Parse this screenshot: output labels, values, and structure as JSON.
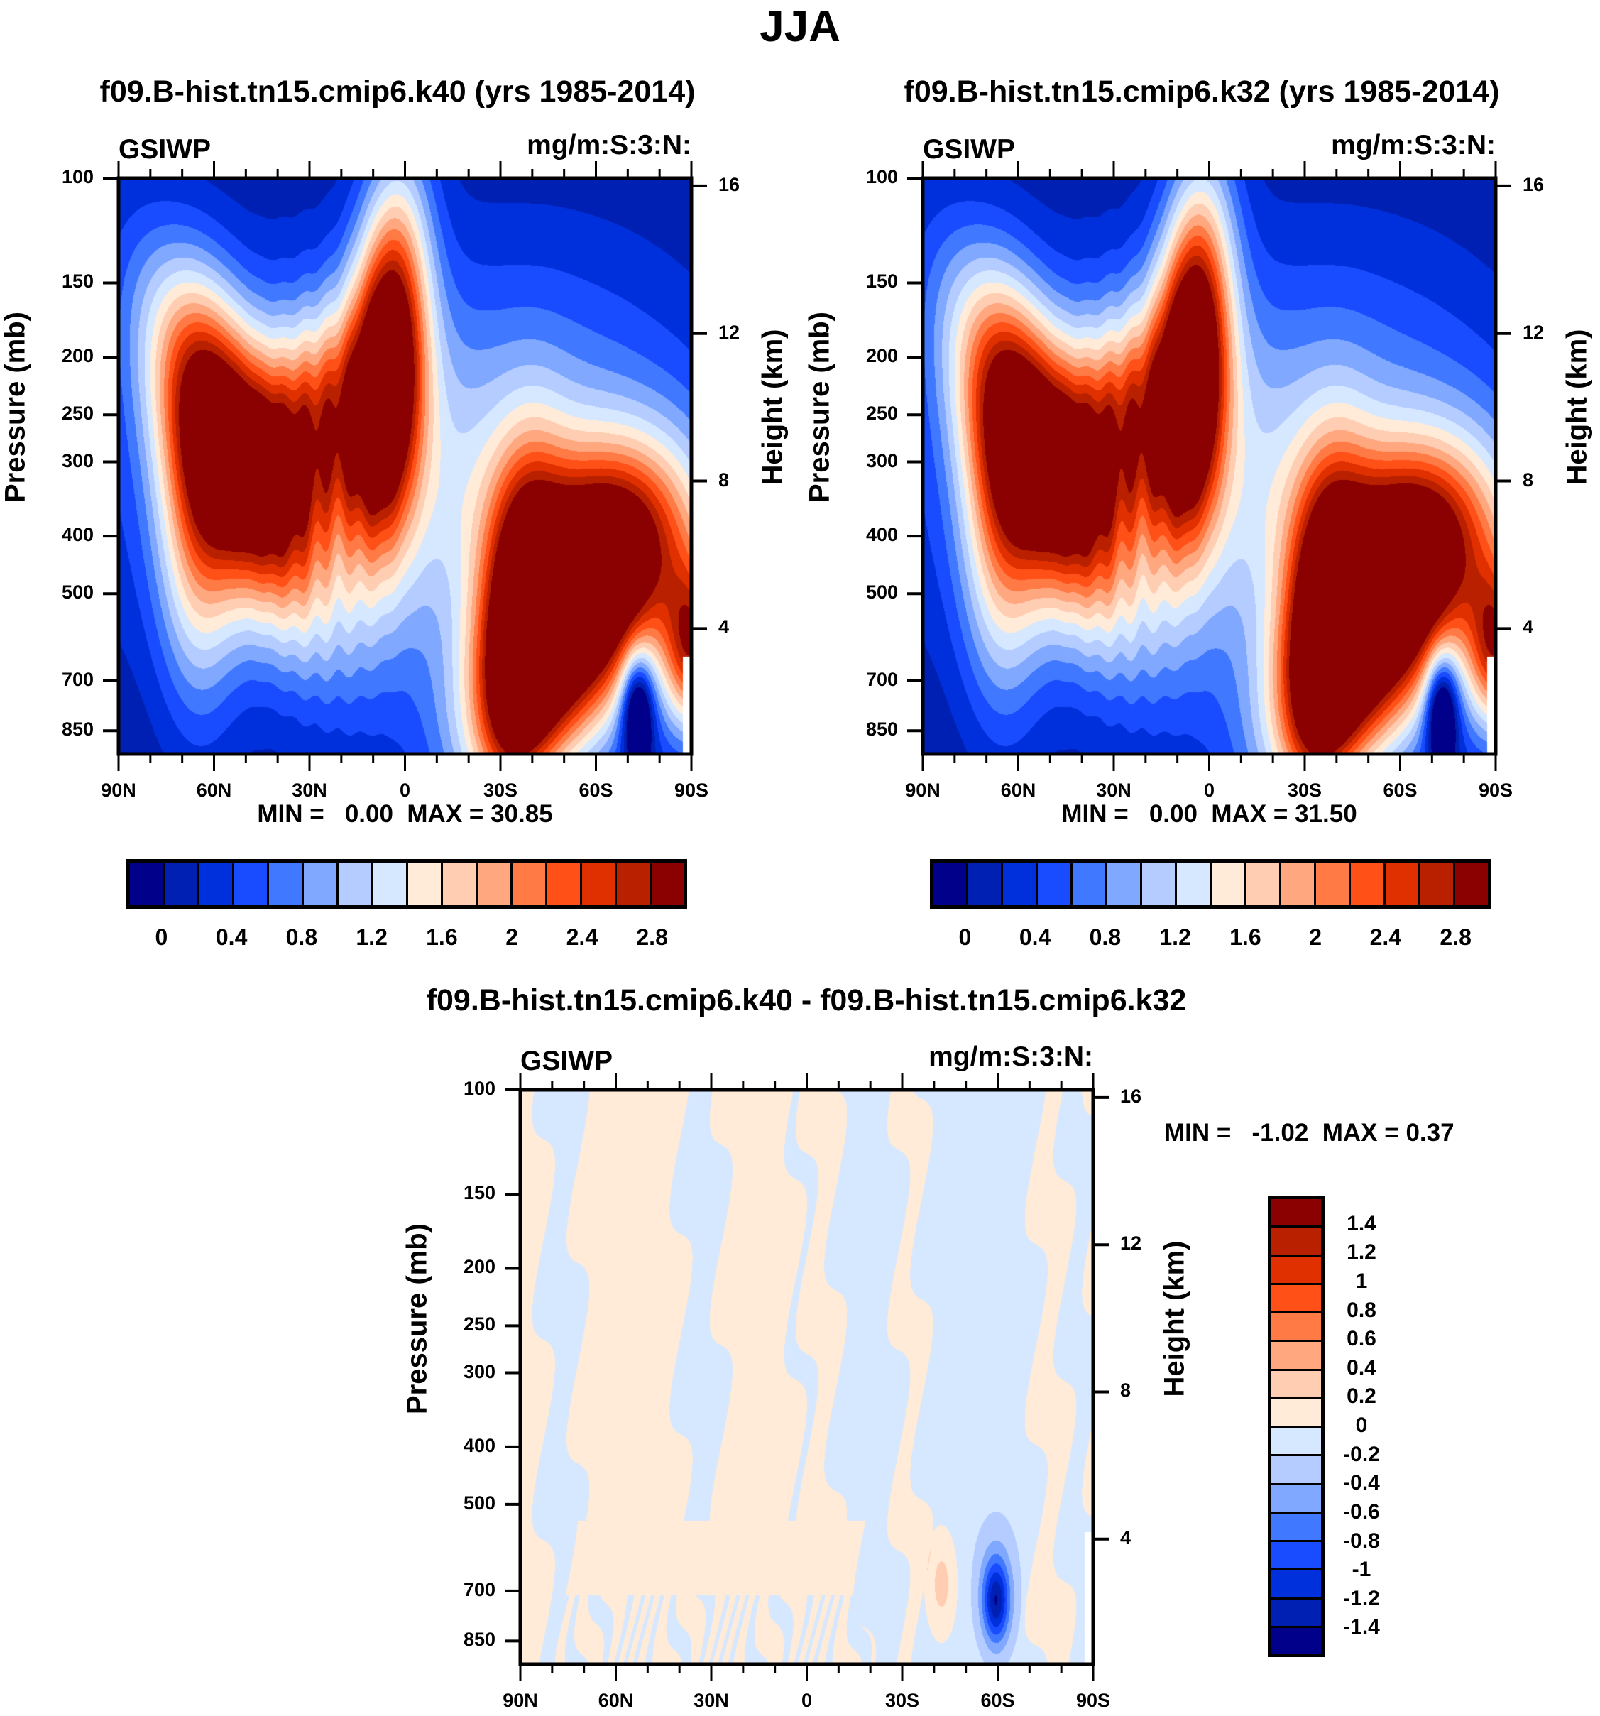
{
  "title": "JJA",
  "palette": [
    "#00008B",
    "#0020B4",
    "#0030DC",
    "#1A4CFF",
    "#4078FF",
    "#80A8FF",
    "#B4CCFF",
    "#D6E8FF",
    "#FFEBD8",
    "#FFCDB2",
    "#FFA880",
    "#FF7A45",
    "#FF5018",
    "#E03000",
    "#B82000",
    "#8B0000"
  ],
  "chart_data": [
    {
      "type": "heatmap",
      "id": "case1",
      "title": "f09.B-hist.tn15.cmip6.k40 (yrs 1985-2014)",
      "variable": "GSIWP",
      "units": "mg/m:S:3:N:",
      "xlabel": "",
      "ylabel": "Pressure (mb)",
      "ylabel_right": "Height (km)",
      "x_ticks": [
        "90N",
        "60N",
        "30N",
        "0",
        "30S",
        "60S",
        "90S"
      ],
      "x_range": [
        90,
        -90
      ],
      "y_ticks": [
        100,
        150,
        200,
        250,
        300,
        400,
        500,
        700,
        850
      ],
      "y_range_mb": [
        100,
        930
      ],
      "y_scale": "log",
      "y_right_ticks": [
        16,
        12,
        8,
        4
      ],
      "contour_levels": [
        0,
        0.2,
        0.4,
        0.6,
        0.8,
        1.0,
        1.2,
        1.4,
        1.6,
        1.8,
        2.0,
        2.2,
        2.4,
        2.6,
        2.8
      ],
      "colorbar_labels": [
        "0",
        "0.4",
        "0.8",
        "1.2",
        "1.6",
        "2",
        "2.4",
        "2.8"
      ],
      "colorbar_orientation": "horizontal",
      "min_label": "MIN =",
      "min_value": "0.00",
      "max_label": "MAX =",
      "max_value": "30.85",
      "features": [
        {
          "name": "NH midlatitude maximum",
          "lat_center": 45,
          "p_center": 420,
          "peak": ">2.8"
        },
        {
          "name": "Tropical deep maximum",
          "lat_center": 8,
          "p_center": 300,
          "peak": ">2.8"
        },
        {
          "name": "SH midlatitude maximum",
          "lat_center": -48,
          "p_center": 650,
          "peak": ">2.8"
        },
        {
          "name": "Antarctic low-level",
          "lat_center": -85,
          "p_center": 650,
          "peak": ">2.8"
        }
      ]
    },
    {
      "type": "heatmap",
      "id": "case2",
      "title": "f09.B-hist.tn15.cmip6.k32 (yrs 1985-2014)",
      "variable": "GSIWP",
      "units": "mg/m:S:3:N:",
      "xlabel": "",
      "ylabel": "Pressure (mb)",
      "ylabel_right": "Height (km)",
      "x_ticks": [
        "90N",
        "60N",
        "30N",
        "0",
        "30S",
        "60S",
        "90S"
      ],
      "x_range": [
        90,
        -90
      ],
      "y_ticks": [
        100,
        150,
        200,
        250,
        300,
        400,
        500,
        700,
        850
      ],
      "y_range_mb": [
        100,
        930
      ],
      "y_scale": "log",
      "y_right_ticks": [
        16,
        12,
        8,
        4
      ],
      "contour_levels": [
        0,
        0.2,
        0.4,
        0.6,
        0.8,
        1.0,
        1.2,
        1.4,
        1.6,
        1.8,
        2.0,
        2.2,
        2.4,
        2.6,
        2.8
      ],
      "colorbar_labels": [
        "0",
        "0.4",
        "0.8",
        "1.2",
        "1.6",
        "2",
        "2.4",
        "2.8"
      ],
      "colorbar_orientation": "horizontal",
      "min_label": "MIN =",
      "min_value": "0.00",
      "max_label": "MAX =",
      "max_value": "31.50",
      "features": [
        {
          "name": "NH midlatitude maximum",
          "lat_center": 45,
          "p_center": 420,
          "peak": ">2.8"
        },
        {
          "name": "Tropical deep maximum",
          "lat_center": 8,
          "p_center": 300,
          "peak": ">2.8"
        },
        {
          "name": "SH midlatitude maximum",
          "lat_center": -48,
          "p_center": 650,
          "peak": ">2.8"
        },
        {
          "name": "Antarctic low-level",
          "lat_center": -85,
          "p_center": 650,
          "peak": ">2.8"
        }
      ]
    },
    {
      "type": "heatmap",
      "id": "diff",
      "title": "f09.B-hist.tn15.cmip6.k40 - f09.B-hist.tn15.cmip6.k32",
      "variable": "GSIWP",
      "units": "mg/m:S:3:N:",
      "xlabel": "",
      "ylabel": "Pressure (mb)",
      "ylabel_right": "Height (km)",
      "x_ticks": [
        "90N",
        "60N",
        "30N",
        "0",
        "30S",
        "60S",
        "90S"
      ],
      "x_range": [
        90,
        -90
      ],
      "y_ticks": [
        100,
        150,
        200,
        250,
        300,
        400,
        500,
        700,
        850
      ],
      "y_range_mb": [
        100,
        930
      ],
      "y_scale": "log",
      "y_right_ticks": [
        16,
        12,
        8,
        4
      ],
      "contour_levels": [
        -1.4,
        -1.2,
        -1.0,
        -0.8,
        -0.6,
        -0.4,
        -0.2,
        0,
        0.2,
        0.4,
        0.6,
        0.8,
        1.0,
        1.2,
        1.4
      ],
      "colorbar_labels": [
        "1.4",
        "1.2",
        "1",
        "0.8",
        "0.6",
        "0.4",
        "0.2",
        "0",
        "-0.2",
        "-0.4",
        "-0.6",
        "-0.8",
        "-1",
        "-1.2",
        "-1.4"
      ],
      "colorbar_orientation": "vertical",
      "min_label": "MIN =",
      "min_value": "-1.02",
      "max_label": "MAX =",
      "max_value": "0.37",
      "features": [
        {
          "name": "Alternating weak +/- vertical bands",
          "range": [
            -0.2,
            0.2
          ]
        },
        {
          "name": "Positive low-level anomaly",
          "lat_center": -44,
          "p_center": 770,
          "peak": 0.4
        },
        {
          "name": "Negative low-level anomaly",
          "lat_center": -60,
          "p_center": 800,
          "peak": -1.02
        }
      ]
    }
  ]
}
